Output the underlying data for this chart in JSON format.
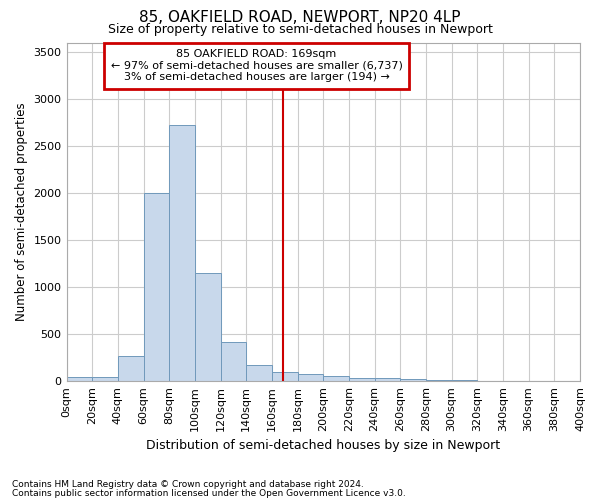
{
  "title": "85, OAKFIELD ROAD, NEWPORT, NP20 4LP",
  "subtitle": "Size of property relative to semi-detached houses in Newport",
  "xlabel": "Distribution of semi-detached houses by size in Newport",
  "ylabel": "Number of semi-detached properties",
  "footnote1": "Contains HM Land Registry data © Crown copyright and database right 2024.",
  "footnote2": "Contains public sector information licensed under the Open Government Licence v3.0.",
  "annotation_title": "85 OAKFIELD ROAD: 169sqm",
  "annotation_line1": "← 97% of semi-detached houses are smaller (6,737)",
  "annotation_line2": "3% of semi-detached houses are larger (194) →",
  "property_size": 169,
  "bin_edges": [
    0,
    20,
    40,
    60,
    80,
    100,
    120,
    140,
    160,
    180,
    200,
    220,
    240,
    260,
    280,
    300,
    320,
    340,
    360,
    380,
    400
  ],
  "bar_heights": [
    50,
    50,
    270,
    2000,
    2720,
    1150,
    420,
    170,
    100,
    75,
    55,
    40,
    30,
    20,
    15,
    10,
    5,
    3,
    2,
    1
  ],
  "bar_color": "#c8d8eb",
  "bar_edge_color": "#7099bb",
  "vline_color": "#cc0000",
  "grid_color": "#cccccc",
  "bg_color": "#ffffff",
  "plot_bg_color": "#ffffff",
  "annotation_box_facecolor": "#ffffff",
  "annotation_box_edgecolor": "#cc0000",
  "ylim": [
    0,
    3600
  ],
  "yticks": [
    0,
    500,
    1000,
    1500,
    2000,
    2500,
    3000,
    3500
  ]
}
